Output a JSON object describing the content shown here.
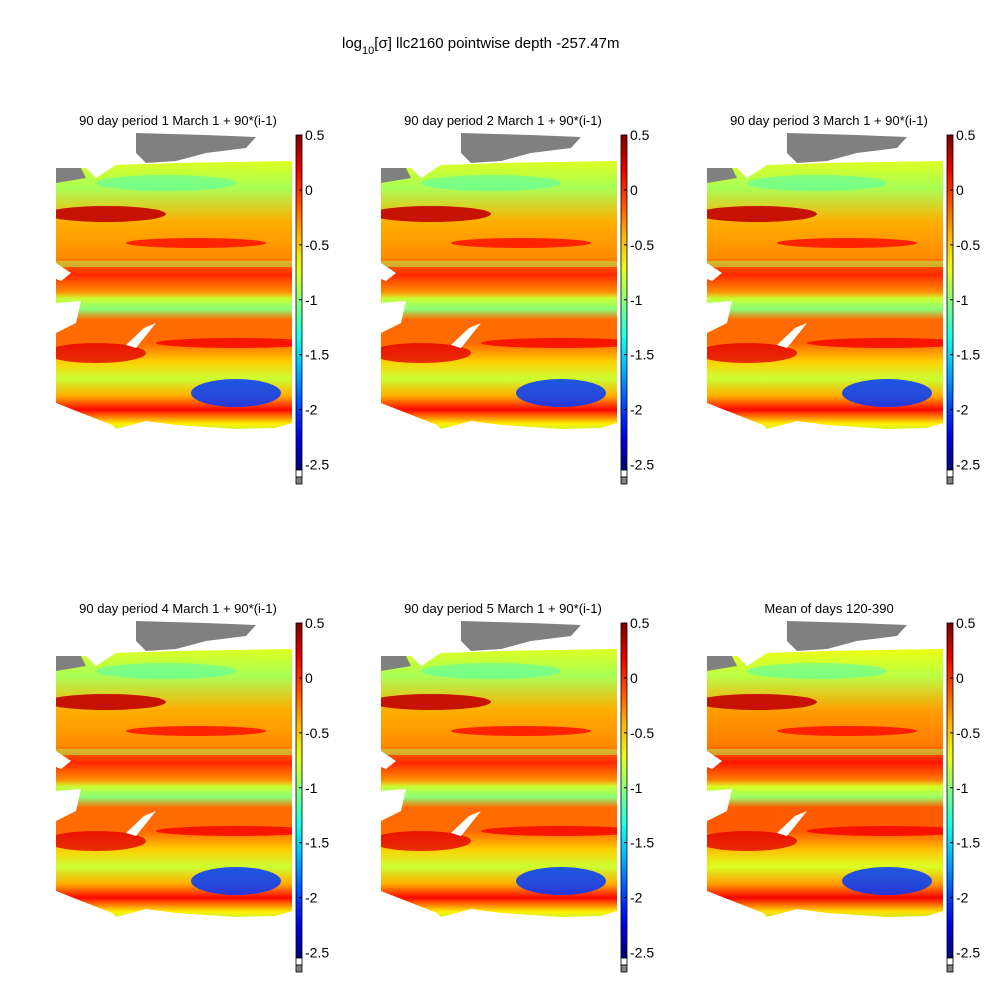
{
  "chart_data": {
    "type": "heatmap",
    "title": {
      "prefix": "log",
      "subscript": "10",
      "suffix": "[σ]  llc2160 pointwise    depth -257.47m"
    },
    "colorbar": {
      "min": -2.55,
      "max": 0.5,
      "ticks": [
        0.5,
        0,
        -0.5,
        -1,
        -1.5,
        -2,
        -2.5
      ],
      "tick_labels": [
        "0.5",
        "0",
        "-0.5",
        "-1",
        "-1.5",
        "-2",
        "-2.5"
      ],
      "colormap": "jet",
      "extra_boxes": [
        "#ffffff",
        "#808080"
      ]
    },
    "panels": [
      {
        "title": "90 day period 1 March 1 + 90*(i-1)"
      },
      {
        "title": "90 day period 2 March 1 + 90*(i-1)"
      },
      {
        "title": "90 day period 3 March 1 + 90*(i-1)"
      },
      {
        "title": "90 day period 4 March 1 + 90*(i-1)"
      },
      {
        "title": "90 day period 5 March 1 + 90*(i-1)"
      },
      {
        "title": "Mean of days 120-390"
      }
    ],
    "land_color": "#808080"
  }
}
